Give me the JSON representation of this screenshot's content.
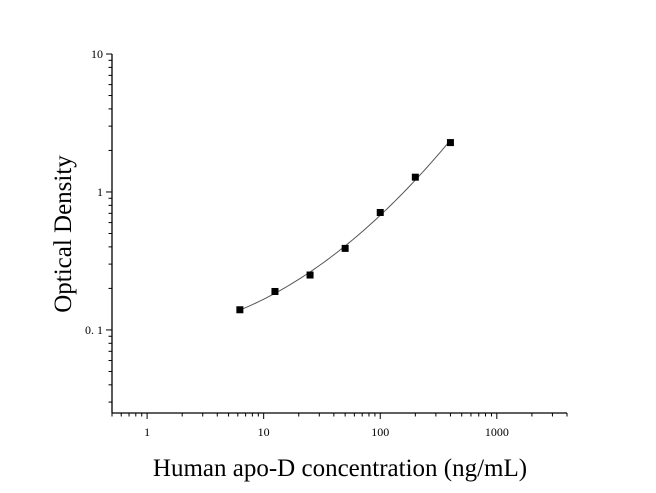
{
  "chart_data": {
    "type": "scatter",
    "title": "",
    "xlabel": "Human apo-D concentration (ng/mL)",
    "ylabel": "Optical Density",
    "xscale": "log",
    "yscale": "log",
    "xlim": [
      0.5,
      4000
    ],
    "ylim": [
      0.025,
      10
    ],
    "x_ticks": [
      1,
      10,
      100,
      1000
    ],
    "x_tick_labels": [
      "1",
      "10",
      "100",
      "1000"
    ],
    "y_ticks": [
      0.1,
      1,
      10
    ],
    "y_tick_labels": [
      "0. 1",
      "1",
      "10"
    ],
    "grid": false,
    "legend": "none",
    "series": [
      {
        "x": [
          6.25,
          12.5,
          25,
          50,
          100,
          200,
          400
        ],
        "y": [
          0.14,
          0.19,
          0.25,
          0.39,
          0.71,
          1.28,
          2.28
        ],
        "marker": "square",
        "fit_line": true
      }
    ],
    "colors": {
      "marker": "#000000",
      "line": "#555555",
      "axis": "#000000"
    }
  }
}
